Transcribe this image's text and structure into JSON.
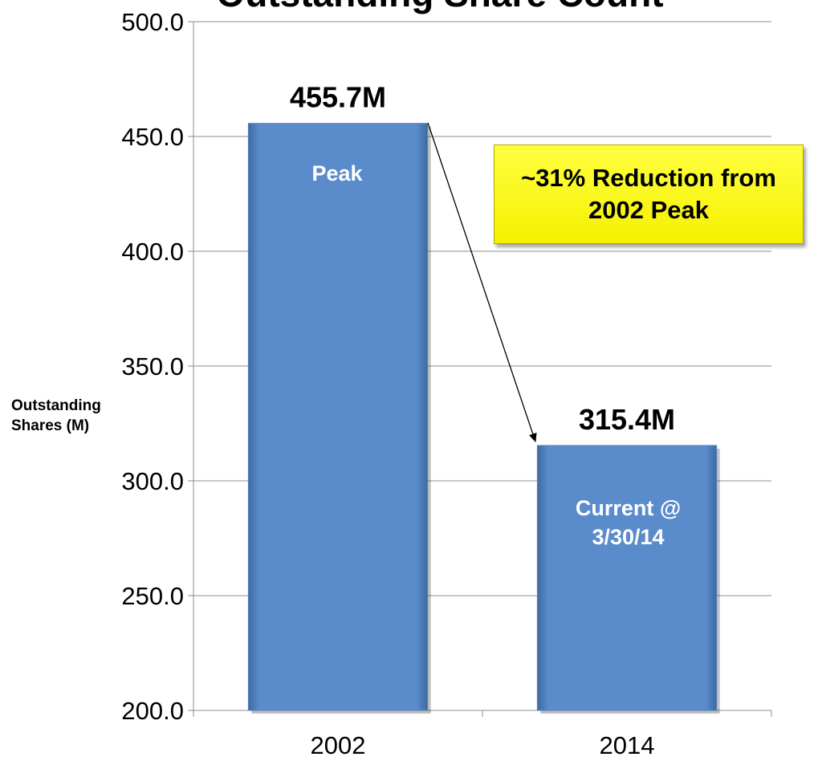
{
  "chart_data": {
    "type": "bar",
    "title": "Outstanding Share Count",
    "y_label": "Outstanding Shares (M)",
    "categories": [
      "2002",
      "2014"
    ],
    "values": [
      455.7,
      315.4
    ],
    "value_labels": [
      "455.7M",
      "315.4M"
    ],
    "color": "#4f81bd",
    "ylim": [
      200,
      500
    ],
    "yticks": [
      {
        "value": 200,
        "label": "200.0"
      },
      {
        "value": 250,
        "label": "250.0"
      },
      {
        "value": 300,
        "label": "300.0"
      },
      {
        "value": 350,
        "label": "350.0"
      },
      {
        "value": 400,
        "label": "400.0"
      },
      {
        "value": 450,
        "label": "450.0"
      },
      {
        "value": 500,
        "label": "500.0"
      }
    ],
    "grid": true,
    "annotations": [
      "Peak",
      "Current @ 3/30/14",
      "~31% Reduction from 2002 Peak"
    ]
  }
}
